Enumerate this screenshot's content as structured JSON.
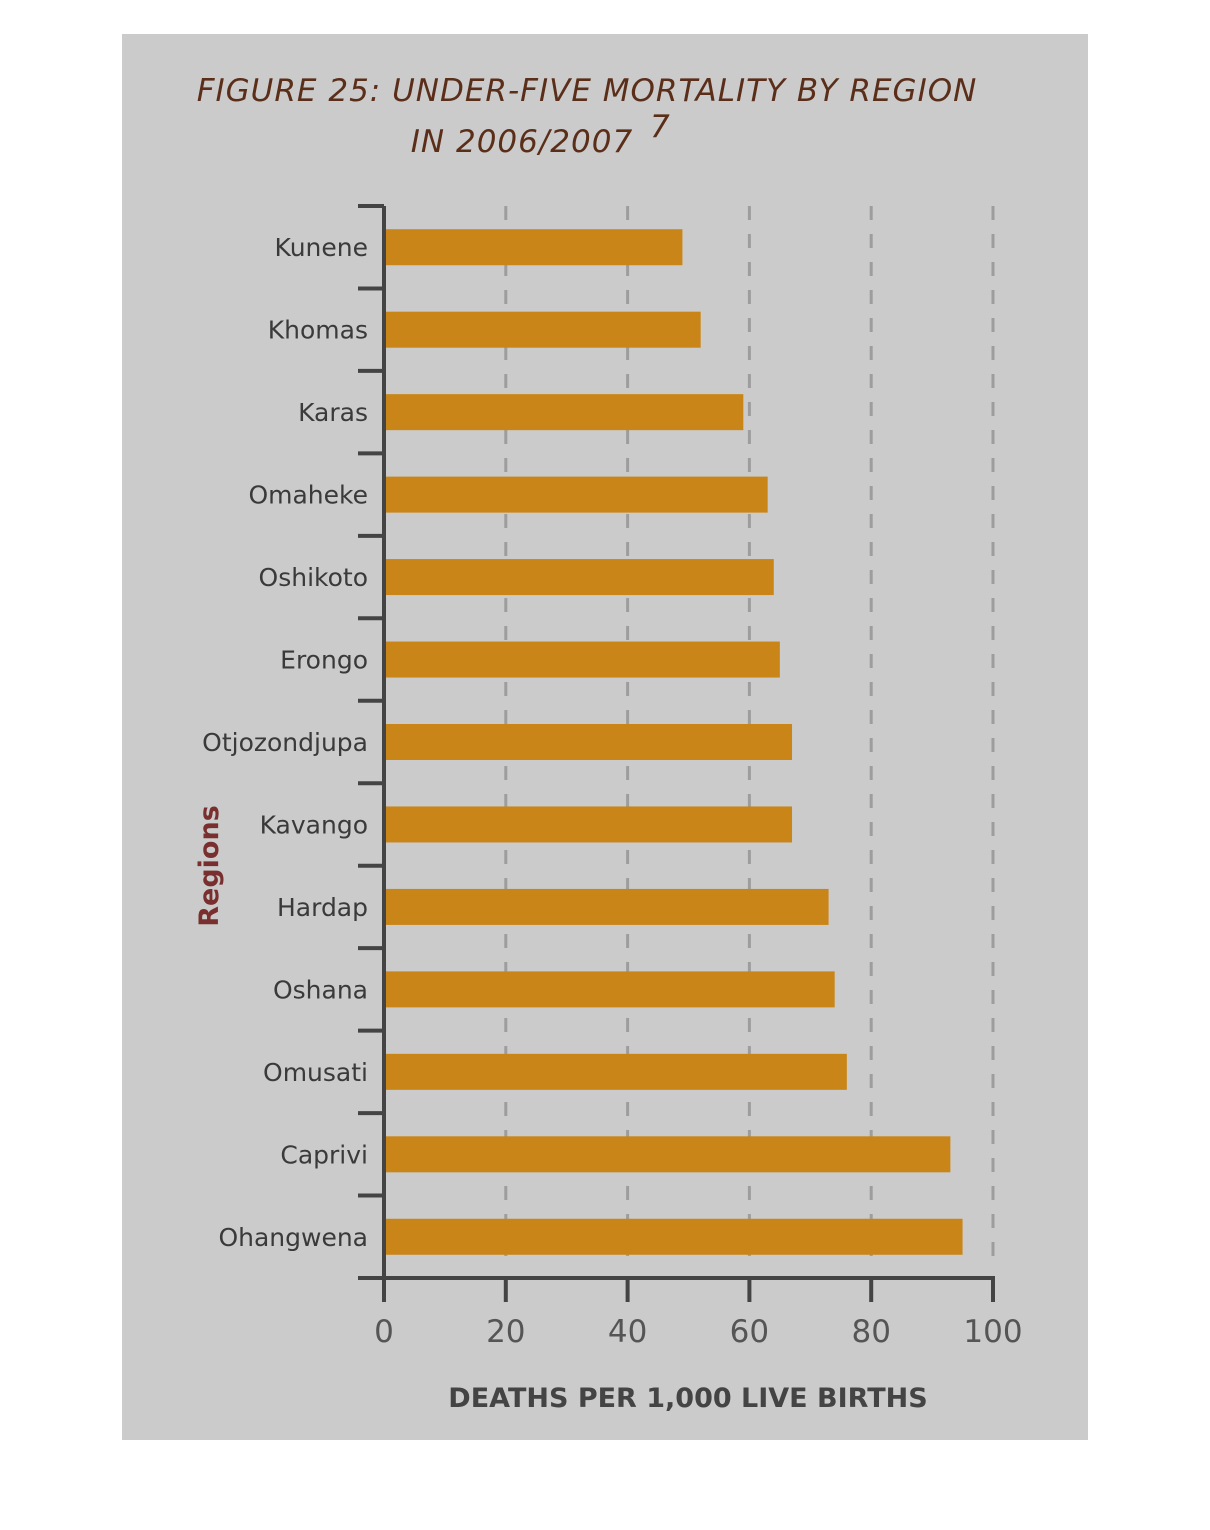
{
  "chart_data": {
    "type": "bar",
    "orientation": "horizontal",
    "title_line1": "FIGURE 25: UNDER-FIVE MORTALITY BY REGION",
    "title_line2": "IN 2006/2007",
    "title_superscript": "7",
    "xlabel": "DEATHS PER 1,000 LIVE BIRTHS",
    "ylabel": "Regions",
    "xlim": [
      0,
      100
    ],
    "xticks": [
      "0",
      "20",
      "40",
      "60",
      "80",
      "100"
    ],
    "grid": "vertical dashed",
    "bar_color": "#c98517",
    "categories": [
      "Kunene",
      "Khomas",
      "Karas",
      "Omaheke",
      "Oshikoto",
      "Erongo",
      "Otjozondjupa",
      "Kavango",
      "Hardap",
      "Oshana",
      "Omusati",
      "Caprivi",
      "Ohangwena"
    ],
    "values": [
      49,
      52,
      59,
      63,
      64,
      65,
      67,
      67,
      73,
      74,
      76,
      93,
      95
    ]
  }
}
